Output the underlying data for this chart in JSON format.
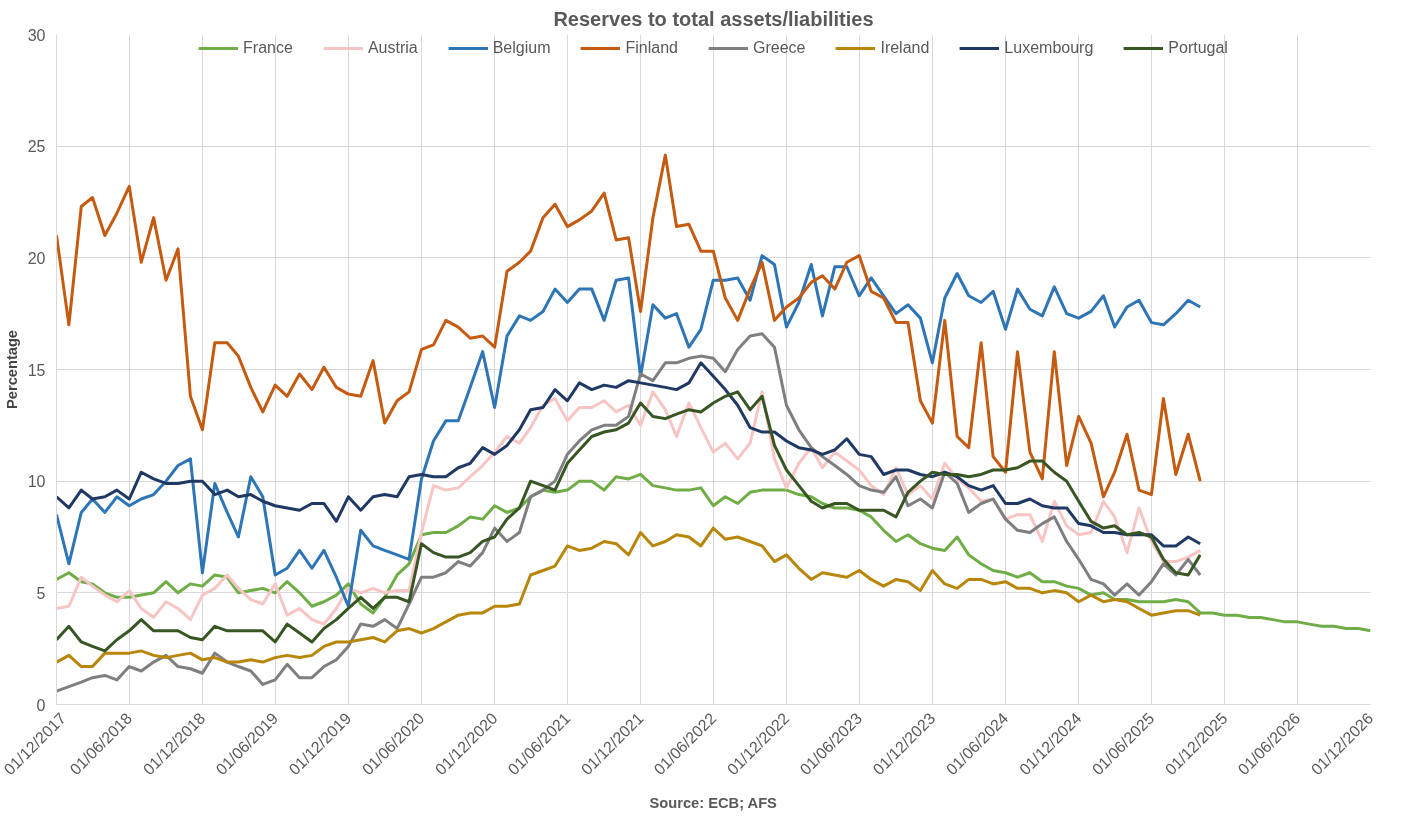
{
  "chart_data": {
    "type": "line",
    "title": "Reserves to total assets/liabilities",
    "ylabel": "Percentage",
    "annotations": [
      "Source: ECB; AFS"
    ],
    "legend": "top",
    "grid": true,
    "marker": "none",
    "line_style": "solid",
    "xlim": [
      "2017-12-01",
      "2026-12-01"
    ],
    "ylim": [
      0,
      30
    ],
    "yticks": [
      0,
      5,
      10,
      15,
      20,
      25,
      30
    ],
    "xticks": [
      {
        "value": "2017-12-01",
        "label": "01/12/2017"
      },
      {
        "value": "2018-06-01",
        "label": "01/06/2018"
      },
      {
        "value": "2018-12-01",
        "label": "01/12/2018"
      },
      {
        "value": "2019-06-01",
        "label": "01/06/2019"
      },
      {
        "value": "2019-12-01",
        "label": "01/12/2019"
      },
      {
        "value": "2020-06-01",
        "label": "01/06/2020"
      },
      {
        "value": "2020-12-01",
        "label": "01/12/2020"
      },
      {
        "value": "2021-06-01",
        "label": "01/06/2021"
      },
      {
        "value": "2021-12-01",
        "label": "01/12/2021"
      },
      {
        "value": "2022-06-01",
        "label": "01/06/2022"
      },
      {
        "value": "2022-12-01",
        "label": "01/12/2022"
      },
      {
        "value": "2023-06-01",
        "label": "01/06/2023"
      },
      {
        "value": "2023-12-01",
        "label": "01/12/2023"
      },
      {
        "value": "2024-06-01",
        "label": "01/06/2024"
      },
      {
        "value": "2024-12-01",
        "label": "01/12/2024"
      },
      {
        "value": "2025-06-01",
        "label": "01/06/2025"
      },
      {
        "value": "2025-12-01",
        "label": "01/12/2025"
      },
      {
        "value": "2026-06-01",
        "label": "01/06/2026"
      },
      {
        "value": "2026-12-01",
        "label": "01/12/2026"
      }
    ],
    "x": [
      "2017-12",
      "2018-01",
      "2018-02",
      "2018-03",
      "2018-04",
      "2018-05",
      "2018-06",
      "2018-07",
      "2018-08",
      "2018-09",
      "2018-10",
      "2018-11",
      "2018-12",
      "2019-01",
      "2019-02",
      "2019-03",
      "2019-04",
      "2019-05",
      "2019-06",
      "2019-07",
      "2019-08",
      "2019-09",
      "2019-10",
      "2019-11",
      "2019-12",
      "2020-01",
      "2020-02",
      "2020-03",
      "2020-04",
      "2020-05",
      "2020-06",
      "2020-07",
      "2020-08",
      "2020-09",
      "2020-10",
      "2020-11",
      "2020-12",
      "2021-01",
      "2021-02",
      "2021-03",
      "2021-04",
      "2021-05",
      "2021-06",
      "2021-07",
      "2021-08",
      "2021-09",
      "2021-10",
      "2021-11",
      "2021-12",
      "2022-01",
      "2022-02",
      "2022-03",
      "2022-04",
      "2022-05",
      "2022-06",
      "2022-07",
      "2022-08",
      "2022-09",
      "2022-10",
      "2022-11",
      "2022-12",
      "2023-01",
      "2023-02",
      "2023-03",
      "2023-04",
      "2023-05",
      "2023-06",
      "2023-07",
      "2023-08",
      "2023-09",
      "2023-10",
      "2023-11",
      "2023-12",
      "2024-01",
      "2024-02",
      "2024-03",
      "2024-04",
      "2024-05",
      "2024-06",
      "2024-07",
      "2024-08",
      "2024-09",
      "2024-10",
      "2024-11",
      "2024-12",
      "2025-01",
      "2025-02",
      "2025-03",
      "2025-04",
      "2025-05",
      "2025-06",
      "2025-07",
      "2025-08",
      "2025-09",
      "2025-10"
    ],
    "series": [
      {
        "name": "France",
        "color": "#70ad47",
        "x": [
          "2017-12",
          "2018-01",
          "2018-02",
          "2018-03",
          "2018-04",
          "2018-05",
          "2018-06",
          "2018-07",
          "2018-08",
          "2018-09",
          "2018-10",
          "2018-11",
          "2018-12",
          "2019-01",
          "2019-02",
          "2019-03",
          "2019-04",
          "2019-05",
          "2019-06",
          "2019-07",
          "2019-08",
          "2019-09",
          "2019-10",
          "2019-11",
          "2019-12",
          "2020-01",
          "2020-02",
          "2020-03",
          "2020-04",
          "2020-05",
          "2020-06",
          "2020-07",
          "2020-08",
          "2020-09",
          "2020-10",
          "2020-11",
          "2020-12",
          "2021-01",
          "2021-02",
          "2021-03",
          "2021-04",
          "2021-05",
          "2021-06",
          "2021-07",
          "2021-08",
          "2021-09",
          "2021-10",
          "2021-11",
          "2021-12",
          "2022-01",
          "2022-02",
          "2022-03",
          "2022-04",
          "2022-05",
          "2022-06",
          "2022-07",
          "2022-08",
          "2022-09",
          "2022-10",
          "2022-11",
          "2022-12",
          "2023-01",
          "2023-02",
          "2023-03",
          "2023-04",
          "2023-05",
          "2023-06",
          "2023-07",
          "2023-08",
          "2023-09",
          "2023-10",
          "2023-11",
          "2023-12",
          "2024-01",
          "2024-02",
          "2024-03",
          "2024-04",
          "2024-05",
          "2024-06",
          "2024-07",
          "2024-08",
          "2024-09",
          "2024-10",
          "2024-11",
          "2024-12",
          "2025-01",
          "2025-02",
          "2025-03",
          "2025-04",
          "2025-05",
          "2025-06",
          "2025-07",
          "2025-08",
          "2025-09",
          "2025-10",
          "2025-11",
          "2025-12",
          "2026-01",
          "2026-02",
          "2026-03",
          "2026-04",
          "2026-05",
          "2026-06",
          "2026-07",
          "2026-08",
          "2026-09",
          "2026-10",
          "2026-11",
          "2026-12"
        ],
        "values": [
          5.6,
          5.9,
          5.5,
          5.4,
          5.0,
          4.8,
          4.8,
          4.9,
          5.0,
          5.5,
          5.0,
          5.4,
          5.3,
          5.8,
          5.7,
          5.0,
          5.1,
          5.2,
          5.0,
          5.5,
          5.0,
          4.4,
          4.6,
          4.9,
          5.4,
          4.5,
          4.1,
          4.8,
          5.8,
          6.3,
          7.6,
          7.7,
          7.7,
          8.0,
          8.4,
          8.3,
          8.9,
          8.6,
          8.8,
          9.3,
          9.6,
          9.5,
          9.6,
          10.0,
          10.0,
          9.6,
          10.2,
          10.1,
          10.3,
          9.8,
          9.7,
          9.6,
          9.6,
          9.7,
          8.9,
          9.3,
          9.0,
          9.5,
          9.6,
          9.6,
          9.6,
          9.4,
          9.3,
          9.0,
          8.8,
          8.8,
          8.7,
          8.4,
          7.8,
          7.3,
          7.6,
          7.2,
          7.0,
          6.9,
          7.5,
          6.7,
          6.3,
          6.0,
          5.9,
          5.7,
          5.9,
          5.5,
          5.5,
          5.3,
          5.2,
          4.9,
          5.0,
          4.7,
          4.7,
          4.6,
          4.6,
          4.6,
          4.7,
          4.6,
          4.1,
          4.1,
          4.0,
          4.0,
          3.9,
          3.9,
          3.8,
          3.7,
          3.7,
          3.6,
          3.5,
          3.5,
          3.4,
          3.4,
          3.3
        ]
      },
      {
        "name": "Austria",
        "color": "#f8c5c5",
        "values": [
          4.3,
          4.4,
          5.7,
          5.3,
          4.9,
          4.6,
          5.1,
          4.3,
          3.9,
          4.6,
          4.3,
          3.8,
          4.9,
          5.2,
          5.8,
          5.2,
          4.7,
          4.5,
          5.4,
          4.0,
          4.3,
          3.8,
          3.6,
          4.3,
          5.2,
          5.0,
          5.2,
          5.0,
          5.1,
          5.1,
          7.7,
          9.8,
          9.6,
          9.7,
          10.2,
          10.7,
          11.3,
          12.0,
          11.7,
          12.4,
          13.4,
          13.7,
          12.7,
          13.3,
          13.3,
          13.6,
          13.1,
          13.4,
          12.5,
          14.0,
          13.2,
          12.0,
          13.5,
          12.4,
          11.3,
          11.7,
          11.0,
          11.7,
          14.0,
          11.0,
          9.7,
          10.8,
          11.5,
          10.6,
          11.3,
          10.9,
          10.5,
          9.8,
          9.4,
          10.6,
          9.4,
          9.8,
          9.2,
          10.8,
          10.1,
          9.7,
          9.1,
          9.2,
          8.3,
          8.5,
          8.5,
          7.3,
          9.1,
          8.0,
          7.6,
          7.7,
          9.1,
          8.4,
          6.8,
          8.8,
          7.3,
          6.4,
          6.4,
          6.6,
          6.9
        ]
      },
      {
        "name": "Belgium",
        "color": "#2e75b6",
        "values": [
          8.5,
          6.3,
          8.6,
          9.2,
          8.6,
          9.3,
          8.9,
          9.2,
          9.4,
          10.0,
          10.7,
          11.0,
          5.9,
          9.9,
          8.6,
          7.5,
          10.2,
          9.3,
          5.8,
          6.1,
          6.9,
          6.1,
          6.9,
          5.7,
          4.4,
          7.8,
          7.1,
          6.9,
          6.7,
          6.5,
          10.1,
          11.8,
          12.7,
          12.7,
          14.2,
          15.8,
          13.3,
          16.5,
          17.4,
          17.2,
          17.6,
          18.6,
          18.0,
          18.6,
          18.6,
          17.2,
          19.0,
          19.1,
          14.7,
          17.9,
          17.3,
          17.5,
          16.0,
          16.8,
          19.0,
          19.0,
          19.1,
          18.1,
          20.1,
          19.7,
          16.9,
          18.0,
          19.7,
          17.4,
          19.6,
          19.6,
          18.3,
          19.1,
          18.3,
          17.5,
          17.9,
          17.3,
          15.3,
          18.2,
          19.3,
          18.3,
          18.0,
          18.5,
          16.8,
          18.6,
          17.7,
          17.4,
          18.7,
          17.5,
          17.3,
          17.6,
          18.3,
          16.9,
          17.8,
          18.1,
          17.1,
          17.0,
          17.5,
          18.1,
          17.8
        ]
      },
      {
        "name": "Finland",
        "color": "#c55a11",
        "values": [
          21.0,
          17.0,
          22.3,
          22.7,
          21.0,
          22.0,
          23.2,
          19.8,
          21.8,
          19.0,
          20.4,
          13.8,
          12.3,
          16.2,
          16.2,
          15.6,
          14.2,
          13.1,
          14.3,
          13.8,
          14.8,
          14.1,
          15.1,
          14.2,
          13.9,
          13.8,
          15.4,
          12.6,
          13.6,
          14.0,
          15.9,
          16.1,
          17.2,
          16.9,
          16.4,
          16.5,
          16.0,
          19.4,
          19.8,
          20.3,
          21.8,
          22.4,
          21.4,
          21.7,
          22.1,
          22.9,
          20.8,
          20.9,
          17.6,
          21.8,
          24.6,
          21.4,
          21.5,
          20.3,
          20.3,
          18.2,
          17.2,
          18.6,
          19.8,
          17.2,
          17.8,
          18.2,
          18.9,
          19.2,
          18.6,
          19.8,
          20.1,
          18.5,
          18.2,
          17.1,
          17.1,
          13.6,
          12.6,
          17.2,
          12.0,
          11.5,
          16.2,
          11.1,
          10.4,
          15.8,
          11.3,
          10.1,
          15.8,
          10.7,
          12.9,
          11.7,
          9.3,
          10.4,
          12.1,
          9.6,
          9.4,
          13.7,
          10.3,
          12.1,
          10.0
        ]
      },
      {
        "name": "Greece",
        "color": "#7f7f7f",
        "values": [
          0.6,
          0.8,
          1.0,
          1.2,
          1.3,
          1.1,
          1.7,
          1.5,
          1.9,
          2.2,
          1.7,
          1.6,
          1.4,
          2.3,
          1.9,
          1.7,
          1.5,
          0.9,
          1.1,
          1.8,
          1.2,
          1.2,
          1.7,
          2.0,
          2.6,
          3.6,
          3.5,
          3.8,
          3.4,
          4.5,
          5.7,
          5.7,
          5.9,
          6.4,
          6.2,
          6.8,
          7.9,
          7.3,
          7.7,
          9.3,
          9.6,
          10.0,
          11.2,
          11.8,
          12.3,
          12.5,
          12.5,
          12.9,
          14.8,
          14.5,
          15.3,
          15.3,
          15.5,
          15.6,
          15.5,
          14.9,
          15.9,
          16.5,
          16.6,
          16.0,
          13.4,
          12.3,
          11.5,
          11.1,
          10.7,
          10.3,
          9.8,
          9.6,
          9.5,
          10.2,
          8.9,
          9.2,
          8.8,
          10.4,
          9.9,
          8.6,
          9.0,
          9.2,
          8.3,
          7.8,
          7.7,
          8.1,
          8.4,
          7.3,
          6.5,
          5.6,
          5.4,
          4.9,
          5.4,
          4.9,
          5.5,
          6.3,
          5.8,
          6.5,
          5.8
        ]
      },
      {
        "name": "Ireland",
        "color": "#b8860b",
        "values": [
          1.9,
          2.2,
          1.7,
          1.7,
          2.3,
          2.3,
          2.3,
          2.4,
          2.2,
          2.1,
          2.2,
          2.3,
          2.0,
          2.1,
          1.9,
          1.9,
          2.0,
          1.9,
          2.1,
          2.2,
          2.1,
          2.2,
          2.6,
          2.8,
          2.8,
          2.9,
          3.0,
          2.8,
          3.3,
          3.4,
          3.2,
          3.4,
          3.7,
          4.0,
          4.1,
          4.1,
          4.4,
          4.4,
          4.5,
          5.8,
          6.0,
          6.2,
          7.1,
          6.9,
          7.0,
          7.3,
          7.2,
          6.7,
          7.7,
          7.1,
          7.3,
          7.6,
          7.5,
          7.1,
          7.9,
          7.4,
          7.5,
          7.3,
          7.1,
          6.4,
          6.7,
          6.1,
          5.6,
          5.9,
          5.8,
          5.7,
          6.0,
          5.6,
          5.3,
          5.6,
          5.5,
          5.1,
          6.0,
          5.4,
          5.2,
          5.6,
          5.6,
          5.4,
          5.5,
          5.2,
          5.2,
          5.0,
          5.1,
          5.0,
          4.6,
          4.9,
          4.6,
          4.7,
          4.6,
          4.3,
          4.0,
          4.1,
          4.2,
          4.2,
          4.0
        ]
      },
      {
        "name": "Luxembourg",
        "color": "#203864",
        "values": [
          9.3,
          8.8,
          9.6,
          9.2,
          9.3,
          9.6,
          9.2,
          10.4,
          10.1,
          9.9,
          9.9,
          10.0,
          10.0,
          9.4,
          9.6,
          9.3,
          9.4,
          9.1,
          8.9,
          8.8,
          8.7,
          9.0,
          9.0,
          8.2,
          9.3,
          8.7,
          9.3,
          9.4,
          9.3,
          10.2,
          10.3,
          10.2,
          10.2,
          10.6,
          10.8,
          11.5,
          11.2,
          11.6,
          12.3,
          13.2,
          13.3,
          14.1,
          13.6,
          14.4,
          14.1,
          14.3,
          14.2,
          14.5,
          14.4,
          14.3,
          14.2,
          14.1,
          14.4,
          15.3,
          14.7,
          14.1,
          13.4,
          12.4,
          12.2,
          12.2,
          11.8,
          11.5,
          11.4,
          11.2,
          11.4,
          11.9,
          11.2,
          11.1,
          10.3,
          10.5,
          10.5,
          10.3,
          10.2,
          10.4,
          10.2,
          9.8,
          9.6,
          9.8,
          9.0,
          9.0,
          9.2,
          8.9,
          8.8,
          8.8,
          8.1,
          8.0,
          7.7,
          7.7,
          7.6,
          7.6,
          7.6,
          7.1,
          7.1,
          7.5,
          7.2
        ]
      },
      {
        "name": "Portugal",
        "color": "#375623",
        "values": [
          2.9,
          3.5,
          2.8,
          2.6,
          2.4,
          2.9,
          3.3,
          3.8,
          3.3,
          3.3,
          3.3,
          3.0,
          2.9,
          3.5,
          3.3,
          3.3,
          3.3,
          3.3,
          2.8,
          3.6,
          3.2,
          2.8,
          3.4,
          3.8,
          4.3,
          4.8,
          4.3,
          4.8,
          4.8,
          4.6,
          7.2,
          6.8,
          6.6,
          6.6,
          6.8,
          7.3,
          7.5,
          8.3,
          8.8,
          10.0,
          9.8,
          9.6,
          10.8,
          11.4,
          12.0,
          12.2,
          12.3,
          12.6,
          13.5,
          12.9,
          12.8,
          13.0,
          13.2,
          13.1,
          13.5,
          13.8,
          14.0,
          13.2,
          13.8,
          11.6,
          10.5,
          9.8,
          9.1,
          8.8,
          9.0,
          9.0,
          8.7,
          8.7,
          8.7,
          8.4,
          9.5,
          10.0,
          10.4,
          10.3,
          10.3,
          10.2,
          10.3,
          10.5,
          10.5,
          10.6,
          10.9,
          10.9,
          10.4,
          10.0,
          9.1,
          8.2,
          7.9,
          8.0,
          7.6,
          7.7,
          7.5,
          6.5,
          5.9,
          5.8,
          6.7
        ]
      }
    ]
  }
}
